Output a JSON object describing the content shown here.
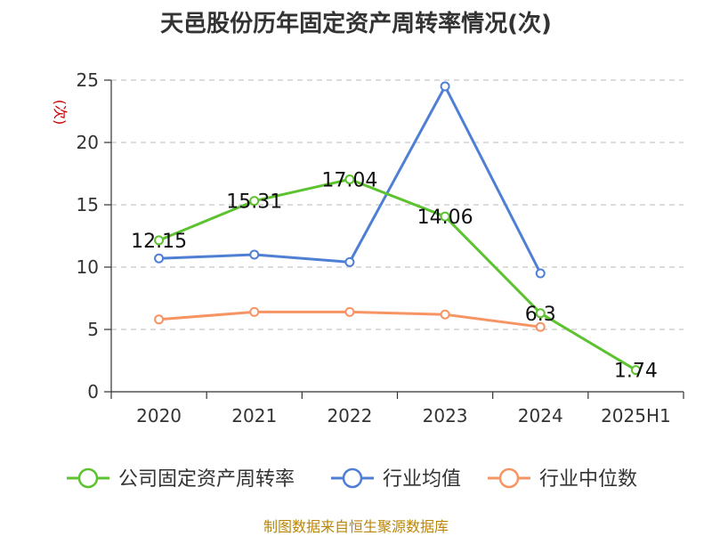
{
  "chart_data": {
    "type": "line",
    "title": "天邑股份历年固定资产周转率情况(次)",
    "ylabel": "(次)",
    "xlabel": "",
    "categories": [
      "2020",
      "2021",
      "2022",
      "2023",
      "2024",
      "2025H1"
    ],
    "ylim": [
      0,
      25
    ],
    "yticks": [
      0,
      5,
      10,
      15,
      20,
      25
    ],
    "grid": true,
    "legend_position": "bottom",
    "series": [
      {
        "name": "公司固定资产周转率",
        "values": [
          12.15,
          15.31,
          17.04,
          14.06,
          6.3,
          1.74
        ],
        "labels": [
          "12.15",
          "15.31",
          "17.04",
          "14.06",
          "6.3",
          "1.74"
        ],
        "color": "#5dc230"
      },
      {
        "name": "行业均值",
        "values": [
          10.7,
          11.0,
          10.4,
          24.5,
          9.5,
          null
        ],
        "color": "#4f7fd4"
      },
      {
        "name": "行业中位数",
        "values": [
          5.8,
          6.4,
          6.4,
          6.2,
          5.2,
          null
        ],
        "color": "#f79463"
      }
    ]
  },
  "footer": {
    "source": "制图数据来自恒生聚源数据库"
  }
}
